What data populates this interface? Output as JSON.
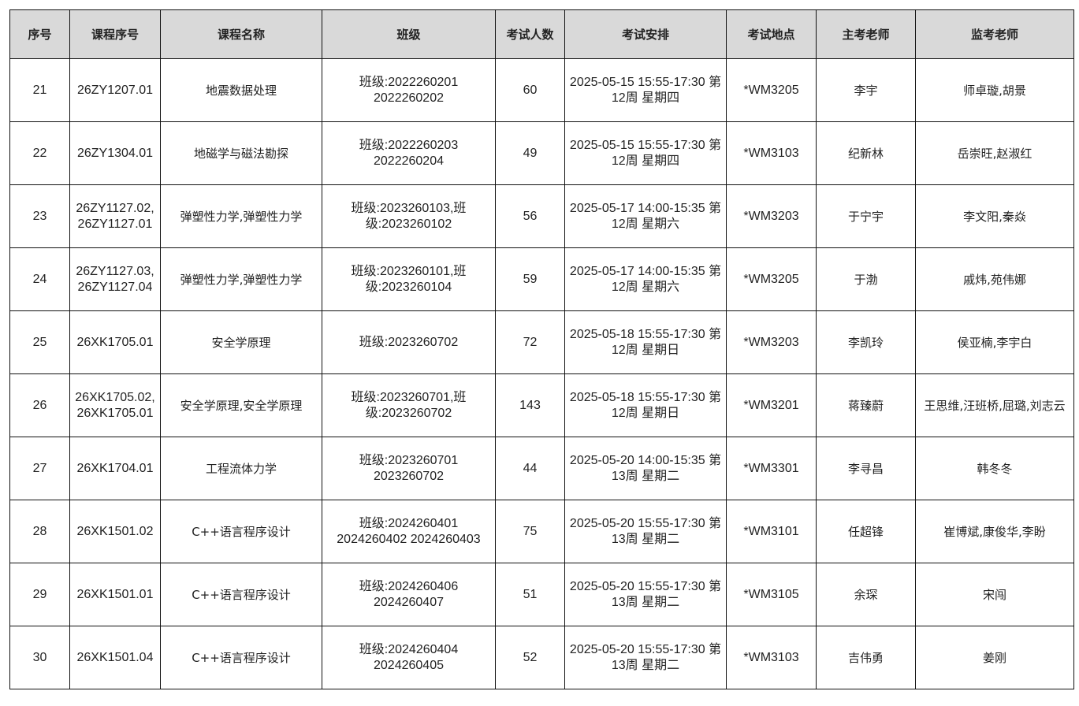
{
  "headers": [
    "序号",
    "课程序号",
    "课程名称",
    "班级",
    "考试人数",
    "考试安排",
    "考试地点",
    "主考老师",
    "监考老师"
  ],
  "rows": [
    {
      "no": "21",
      "course_id": "26ZY1207.01",
      "course_name": "地震数据处理",
      "classes": "班级:2022260201 2022260202",
      "count": "60",
      "schedule": "2025-05-15 15:55-17:30 第12周 星期四",
      "room": "*WM3205",
      "chief": "李宇",
      "proctors": "师卓璇,胡景"
    },
    {
      "no": "22",
      "course_id": "26ZY1304.01",
      "course_name": "地磁学与磁法勘探",
      "classes": "班级:2022260203 2022260204",
      "count": "49",
      "schedule": "2025-05-15 15:55-17:30 第12周 星期四",
      "room": "*WM3103",
      "chief": "纪新林",
      "proctors": "岳崇旺,赵淑红"
    },
    {
      "no": "23",
      "course_id": "26ZY1127.02, 26ZY1127.01",
      "course_name": "弹塑性力学,弹塑性力学",
      "classes": "班级:2023260103,班级:2023260102",
      "count": "56",
      "schedule": "2025-05-17 14:00-15:35 第12周 星期六",
      "room": "*WM3203",
      "chief": "于宁宇",
      "proctors": "李文阳,秦焱"
    },
    {
      "no": "24",
      "course_id": "26ZY1127.03, 26ZY1127.04",
      "course_name": "弹塑性力学,弹塑性力学",
      "classes": "班级:2023260101,班级:2023260104",
      "count": "59",
      "schedule": "2025-05-17 14:00-15:35 第12周 星期六",
      "room": "*WM3205",
      "chief": "于渤",
      "proctors": "戚炜,苑伟娜"
    },
    {
      "no": "25",
      "course_id": "26XK1705.01",
      "course_name": "安全学原理",
      "classes": "班级:2023260702",
      "count": "72",
      "schedule": "2025-05-18 15:55-17:30 第12周 星期日",
      "room": "*WM3203",
      "chief": "李凯玲",
      "proctors": "侯亚楠,李宇白"
    },
    {
      "no": "26",
      "course_id": "26XK1705.02, 26XK1705.01",
      "course_name": "安全学原理,安全学原理",
      "classes": "班级:2023260701,班级:2023260702",
      "count": "143",
      "schedule": "2025-05-18 15:55-17:30 第12周 星期日",
      "room": "*WM3201",
      "chief": "蒋臻蔚",
      "proctors": "王思维,汪班桥,屈璐,刘志云"
    },
    {
      "no": "27",
      "course_id": "26XK1704.01",
      "course_name": "工程流体力学",
      "classes": "班级:2023260701 2023260702",
      "count": "44",
      "schedule": "2025-05-20 14:00-15:35 第13周 星期二",
      "room": "*WM3301",
      "chief": "李寻昌",
      "proctors": "韩冬冬"
    },
    {
      "no": "28",
      "course_id": "26XK1501.02",
      "course_name": "C++语言程序设计",
      "classes": "班级:2024260401 2024260402 2024260403",
      "count": "75",
      "schedule": "2025-05-20 15:55-17:30 第13周 星期二",
      "room": "*WM3101",
      "chief": "任超锋",
      "proctors": "崔博斌,康俊华,李盼"
    },
    {
      "no": "29",
      "course_id": "26XK1501.01",
      "course_name": "C++语言程序设计",
      "classes": "班级:2024260406 2024260407",
      "count": "51",
      "schedule": "2025-05-20 15:55-17:30 第13周 星期二",
      "room": "*WM3105",
      "chief": "余琛",
      "proctors": "宋闯"
    },
    {
      "no": "30",
      "course_id": "26XK1501.04",
      "course_name": "C++语言程序设计",
      "classes": "班级:2024260404 2024260405",
      "count": "52",
      "schedule": "2025-05-20 15:55-17:30 第13周 星期二",
      "room": "*WM3103",
      "chief": "吉伟勇",
      "proctors": "姜刚"
    }
  ]
}
